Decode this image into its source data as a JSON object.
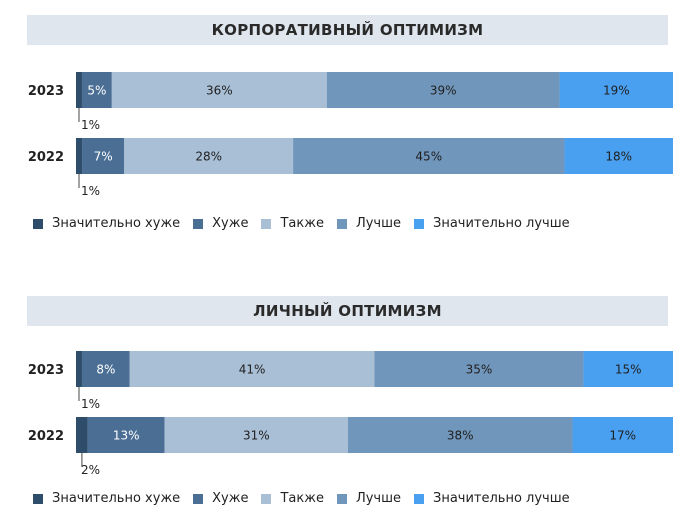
{
  "legend": [
    "Значительно хуже",
    "Хуже",
    "Также",
    "Лучше",
    "Значительно лучше"
  ],
  "colors": [
    "#2e4d6b",
    "#4b6f94",
    "#a9bfd6",
    "#7196bb",
    "#4aa0f0"
  ],
  "chart_data": [
    {
      "type": "bar",
      "stacked": true,
      "orientation": "horizontal",
      "title": "КОРПОРАТИВНЫЙ ОПТИМИЗМ",
      "categories": [
        "2023",
        "2022"
      ],
      "series": [
        {
          "name": "Значительно хуже",
          "values": [
            1,
            1
          ],
          "labels": [
            "1%",
            "1%"
          ]
        },
        {
          "name": "Хуже",
          "values": [
            5,
            7
          ],
          "labels": [
            "5%",
            "7%"
          ]
        },
        {
          "name": "Также",
          "values": [
            36,
            28
          ],
          "labels": [
            "36%",
            "28%"
          ]
        },
        {
          "name": "Лучше",
          "values": [
            39,
            45
          ],
          "labels": [
            "39%",
            "45%"
          ]
        },
        {
          "name": "Значительно лучше",
          "values": [
            19,
            18
          ],
          "labels": [
            "19%",
            "18%"
          ]
        }
      ],
      "legend_position": "bottom"
    },
    {
      "type": "bar",
      "stacked": true,
      "orientation": "horizontal",
      "title": "ЛИЧНЫЙ ОПТИМИЗМ",
      "categories": [
        "2023",
        "2022"
      ],
      "series": [
        {
          "name": "Значительно хуже",
          "values": [
            1,
            2
          ],
          "labels": [
            "1%",
            "2%"
          ]
        },
        {
          "name": "Хуже",
          "values": [
            8,
            13
          ],
          "labels": [
            "8%",
            "13%"
          ]
        },
        {
          "name": "Также",
          "values": [
            41,
            31
          ],
          "labels": [
            "41%",
            "31%"
          ]
        },
        {
          "name": "Лучше",
          "values": [
            35,
            38
          ],
          "labels": [
            "35%",
            "38%"
          ]
        },
        {
          "name": "Значительно лучше",
          "values": [
            15,
            17
          ],
          "labels": [
            "15%",
            "17%"
          ]
        }
      ],
      "legend_position": "bottom"
    }
  ]
}
